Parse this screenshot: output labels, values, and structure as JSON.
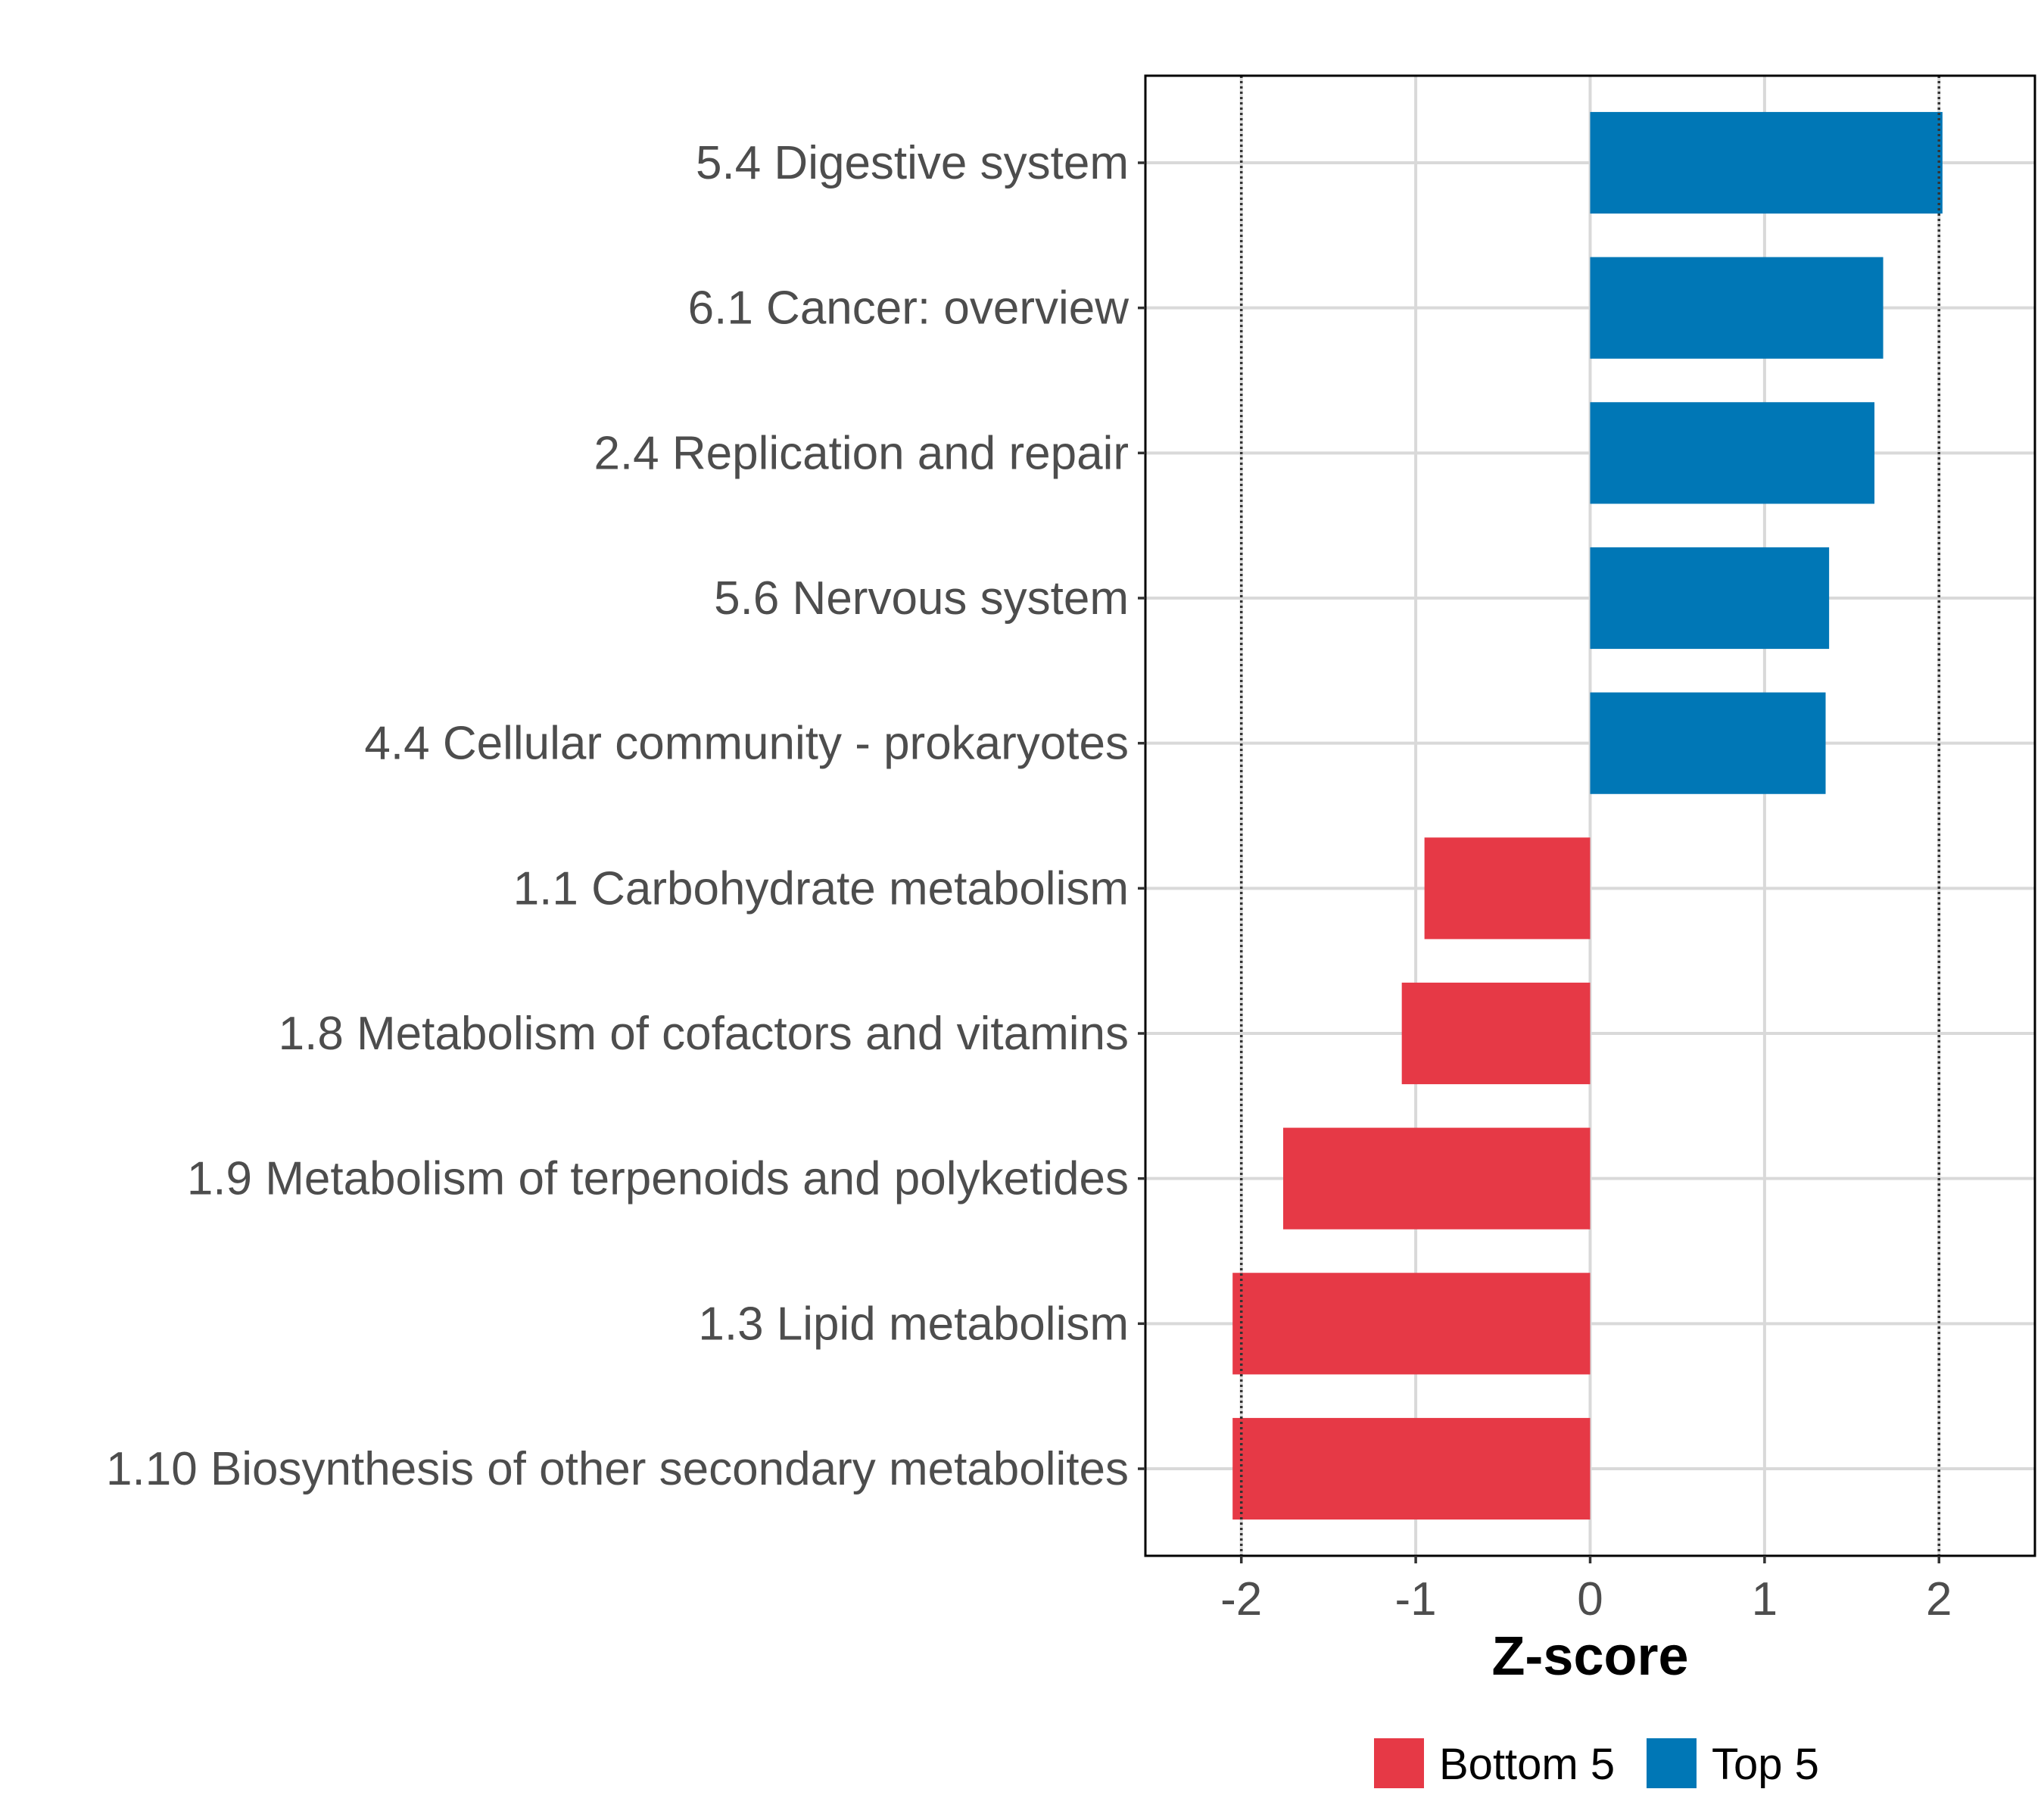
{
  "chart_data": {
    "type": "bar",
    "orientation": "horizontal",
    "title": "",
    "xlabel": "Z-score",
    "ylabel": "",
    "xlim": [
      -2.55,
      2.55
    ],
    "xticks": [
      -2,
      -1,
      0,
      1,
      2
    ],
    "xtick_labels": [
      "-2",
      "-1",
      "0",
      "1",
      "2"
    ],
    "reference_lines": [
      -2,
      2
    ],
    "grid": true,
    "categories": [
      "5.4 Digestive system",
      "6.1 Cancer: overview",
      "2.4 Replication and repair",
      "5.6 Nervous system",
      "4.4 Cellular community - prokaryotes",
      "1.1 Carbohydrate metabolism",
      "1.8 Metabolism of cofactors and vitamins",
      "1.9 Metabolism of terpenoids and polyketides",
      "1.3 Lipid metabolism",
      "1.10 Biosynthesis of other secondary metabolites"
    ],
    "values": [
      2.02,
      1.68,
      1.63,
      1.37,
      1.35,
      -0.95,
      -1.08,
      -1.76,
      -2.05,
      -2.05
    ],
    "groups": [
      "Top 5",
      "Top 5",
      "Top 5",
      "Top 5",
      "Top 5",
      "Bottom 5",
      "Bottom 5",
      "Bottom 5",
      "Bottom 5",
      "Bottom 5"
    ],
    "legend": {
      "position": "bottom",
      "entries": [
        {
          "label": "Bottom 5",
          "color": "#e63946"
        },
        {
          "label": "Top 5",
          "color": "#0077b6"
        }
      ]
    },
    "colors": {
      "Top 5": "#0077b6",
      "Bottom 5": "#e63946"
    }
  }
}
